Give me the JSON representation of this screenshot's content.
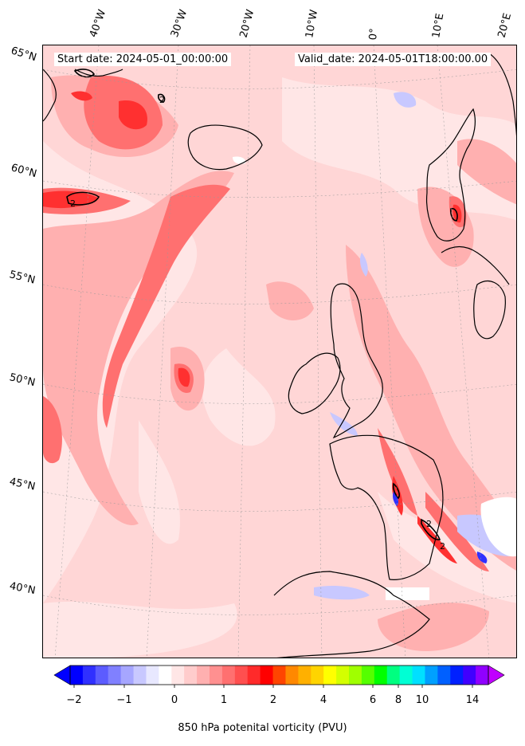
{
  "header": {
    "start_date": "Start date: 2024-05-01_00:00:00",
    "valid_date": "Valid_date: 2024-05-01T18:00:00.00"
  },
  "longitude_labels": [
    "40°W",
    "30°W",
    "20°W",
    "10°W",
    "0°",
    "10°E",
    "20°E"
  ],
  "latitude_labels": [
    "65°N",
    "60°N",
    "55°N",
    "50°N",
    "45°N",
    "40°N"
  ],
  "colorbar": {
    "label": "850 hPa potenital vorticity (PVU)",
    "tick_labels": [
      "−2",
      "−1",
      "0",
      "1",
      "2",
      "4",
      "6",
      "8",
      "10",
      "14"
    ],
    "extend": "both",
    "colors": [
      "#0000ff",
      "#3030ff",
      "#5c5cff",
      "#8080ff",
      "#a6a6ff",
      "#c8c8ff",
      "#e8e8ff",
      "#ffffff",
      "#ffe6e6",
      "#ffcccc",
      "#ffb0b0",
      "#ff9090",
      "#ff7070",
      "#ff4f4f",
      "#ff2a2a",
      "#ff0000",
      "#ff4400",
      "#ff8800",
      "#ffb000",
      "#ffd400",
      "#ffff00",
      "#d4ff00",
      "#a0ff00",
      "#55ff00",
      "#00ff00",
      "#00ff80",
      "#00ffd4",
      "#00e0ff",
      "#00a0ff",
      "#0060ff",
      "#0020ff",
      "#4000ff",
      "#9000ff"
    ],
    "under_color": "#0000ff",
    "over_color": "#c000ff"
  },
  "map": {
    "background_fill": "#ffd6d6",
    "contour_label": "2",
    "palette": {
      "light": "#ffe6e6",
      "medium": "#ffb0b0",
      "strong": "#ff7070",
      "intense": "#ff3030",
      "negative": "#c8c8ff",
      "strong_negative": "#3030ff",
      "missing": "#ffffff"
    }
  }
}
